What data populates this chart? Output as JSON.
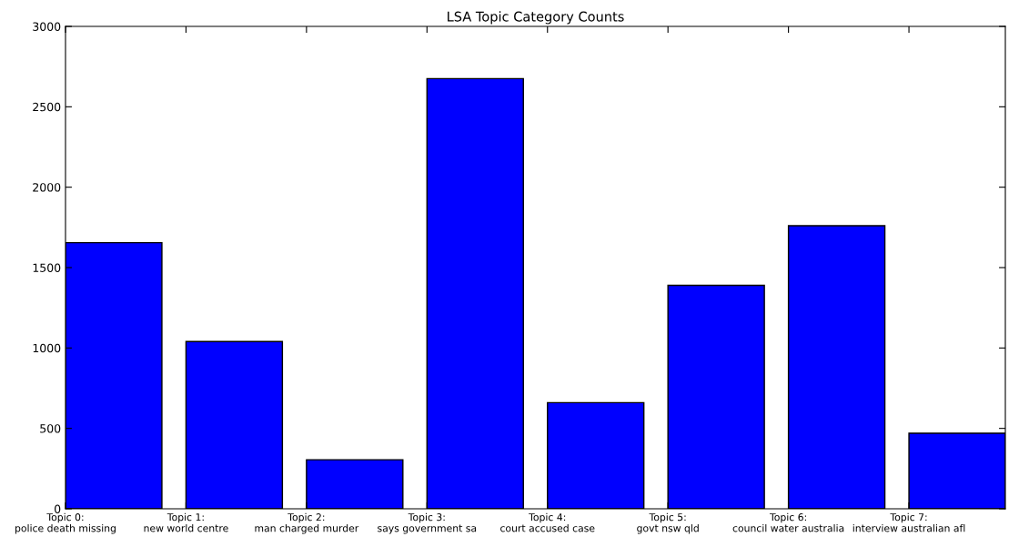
{
  "chart_data": {
    "type": "bar",
    "title": "LSA Topic Category Counts",
    "categories": [
      "Topic 0:\npolice death missing",
      "Topic 1:\nnew world centre",
      "Topic 2:\nman charged murder",
      "Topic 3:\nsays government sa",
      "Topic 4:\ncourt accused case",
      "Topic 5:\ngovt nsw qld",
      "Topic 6:\ncouncil water australia",
      "Topic 7:\ninterview australian afl"
    ],
    "values": [
      1655,
      1040,
      305,
      2675,
      660,
      1390,
      1760,
      470
    ],
    "color": "#0000ff",
    "ylim": [
      0,
      3000
    ],
    "yticks": [
      0,
      500,
      1000,
      1500,
      2000,
      2500,
      3000
    ],
    "grid": false,
    "legend": false
  }
}
